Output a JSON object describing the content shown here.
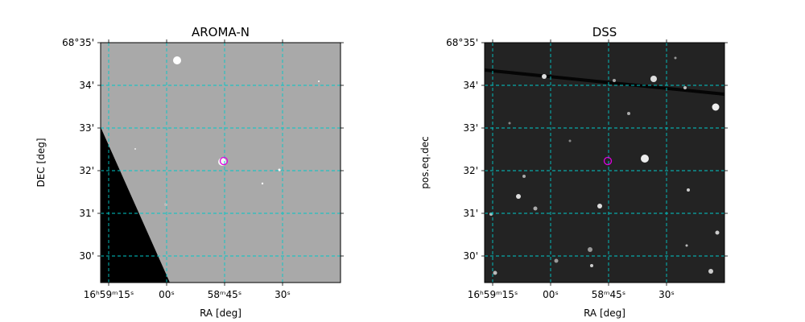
{
  "panels": [
    {
      "title": "AROMA-N",
      "xlabel": "RA [deg]",
      "ylabel": "DEC [deg]",
      "xticks": [
        "16ʰ59ᵐ15ˢ",
        "00ˢ",
        "58ᵐ45ˢ",
        "30ˢ"
      ],
      "yticks": [
        "68°35'",
        "34'",
        "33'",
        "32'",
        "31'",
        "30'"
      ]
    },
    {
      "title": "DSS",
      "xlabel": "RA [deg]",
      "ylabel": "pos.eq.dec",
      "xticks": [
        "16ʰ59ᵐ15ˢ",
        "00ˢ",
        "58ᵐ45ˢ",
        "30ˢ"
      ],
      "yticks": [
        "68°35'",
        "34'",
        "33'",
        "32'",
        "31'",
        "30'"
      ]
    }
  ]
}
